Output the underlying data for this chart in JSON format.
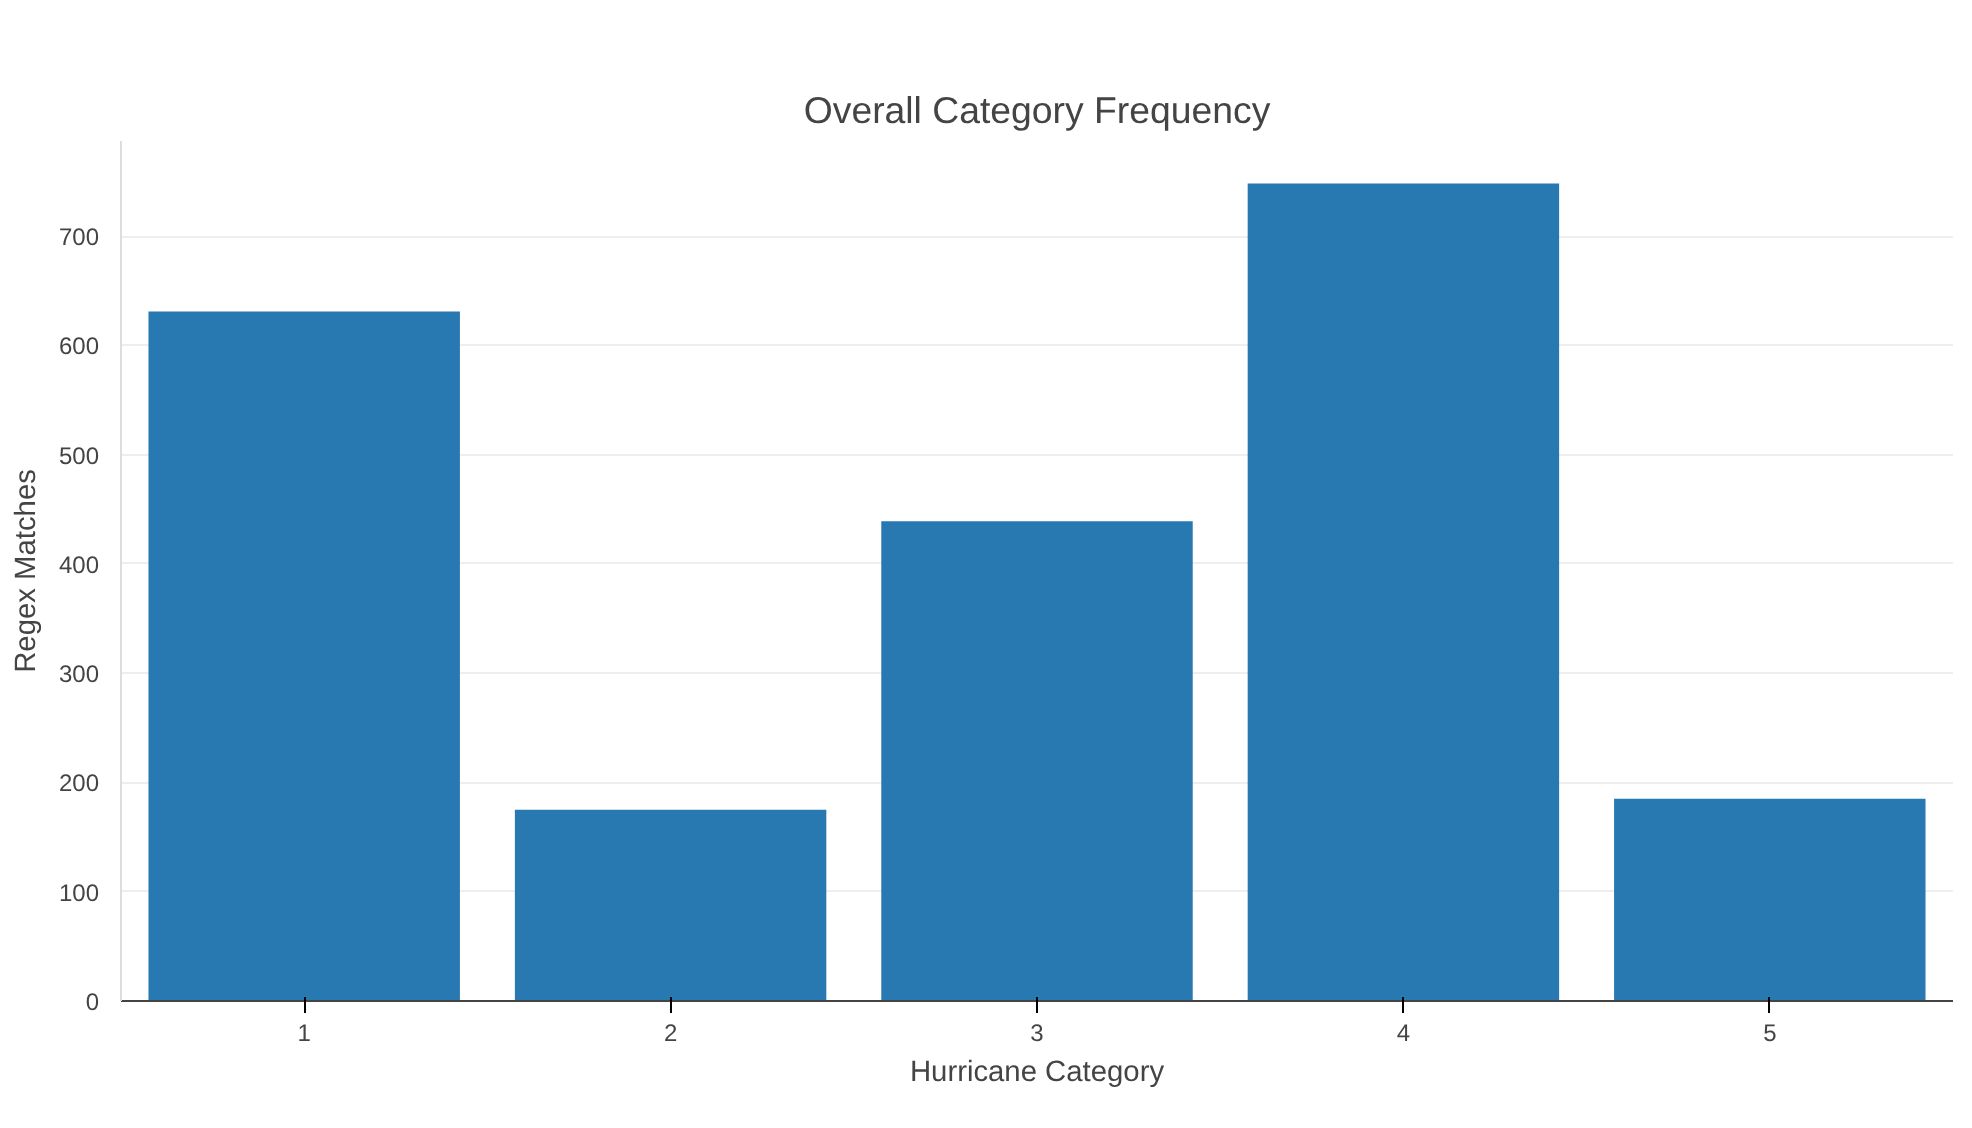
{
  "chart_data": {
    "type": "bar",
    "title": "Overall Category Frequency",
    "xlabel": "Hurricane Category",
    "ylabel": "Regex Matches",
    "categories": [
      "1",
      "2",
      "3",
      "4",
      "5"
    ],
    "values": [
      631,
      175,
      439,
      748,
      185
    ],
    "color": "#2878b2",
    "ylim": [
      0,
      787
    ],
    "yticks": [
      0,
      100,
      200,
      300,
      400,
      500,
      600,
      700
    ],
    "grid": "y"
  }
}
